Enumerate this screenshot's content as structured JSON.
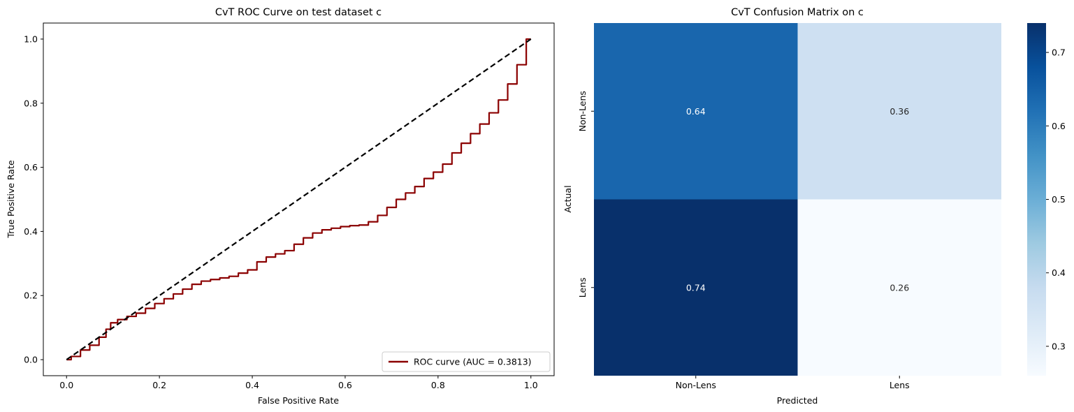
{
  "chart_data": [
    {
      "type": "line",
      "title": "CvT ROC Curve on test dataset c",
      "xlabel": "False Positive Rate",
      "ylabel": "True Positive Rate",
      "xlim": [
        -0.05,
        1.05
      ],
      "ylim": [
        -0.05,
        1.05
      ],
      "xticks": [
        "0.0",
        "0.2",
        "0.4",
        "0.6",
        "0.8",
        "1.0"
      ],
      "yticks": [
        "0.0",
        "0.2",
        "0.4",
        "0.6",
        "0.8",
        "1.0"
      ],
      "grid": false,
      "legend": {
        "position": "lower-right",
        "entries": [
          "ROC curve (AUC = 0.3813)"
        ]
      },
      "series": [
        {
          "name": "ROC curve (AUC = 0.3813)",
          "color": "#8b0000",
          "style": "solid",
          "step": true,
          "x": [
            0.0,
            0.02,
            0.04,
            0.06,
            0.08,
            0.09,
            0.1,
            0.12,
            0.14,
            0.16,
            0.18,
            0.2,
            0.22,
            0.24,
            0.26,
            0.28,
            0.3,
            0.32,
            0.34,
            0.36,
            0.38,
            0.4,
            0.42,
            0.44,
            0.46,
            0.48,
            0.5,
            0.52,
            0.54,
            0.56,
            0.58,
            0.6,
            0.62,
            0.64,
            0.66,
            0.68,
            0.7,
            0.72,
            0.74,
            0.76,
            0.78,
            0.8,
            0.82,
            0.84,
            0.86,
            0.88,
            0.9,
            0.92,
            0.94,
            0.96,
            0.98,
            1.0
          ],
          "y": [
            0.0,
            0.01,
            0.03,
            0.045,
            0.07,
            0.095,
            0.115,
            0.125,
            0.135,
            0.145,
            0.16,
            0.175,
            0.19,
            0.205,
            0.22,
            0.235,
            0.245,
            0.25,
            0.255,
            0.26,
            0.27,
            0.28,
            0.305,
            0.32,
            0.33,
            0.34,
            0.36,
            0.38,
            0.395,
            0.405,
            0.41,
            0.415,
            0.418,
            0.42,
            0.43,
            0.45,
            0.475,
            0.5,
            0.52,
            0.54,
            0.565,
            0.585,
            0.61,
            0.645,
            0.675,
            0.705,
            0.735,
            0.77,
            0.81,
            0.86,
            0.92,
            1.0
          ]
        },
        {
          "color": "#000000",
          "style": "dashed",
          "x": [
            0,
            1
          ],
          "y": [
            0,
            1
          ]
        }
      ]
    },
    {
      "type": "heatmap",
      "title": "CvT Confusion Matrix on c",
      "xlabel": "Predicted",
      "ylabel": "Actual",
      "x_categories": [
        "Non-Lens",
        "Lens"
      ],
      "y_categories": [
        "Non-Lens",
        "Lens"
      ],
      "values": [
        [
          0.64,
          0.36
        ],
        [
          0.74,
          0.26
        ]
      ],
      "labels": [
        [
          "0.64",
          "0.36"
        ],
        [
          "0.74",
          "0.26"
        ]
      ],
      "colormap": "Blues",
      "colorbar": {
        "range": [
          0.26,
          0.74
        ],
        "ticks": [
          "0.3",
          "0.4",
          "0.5",
          "0.6",
          "0.7"
        ]
      }
    }
  ]
}
